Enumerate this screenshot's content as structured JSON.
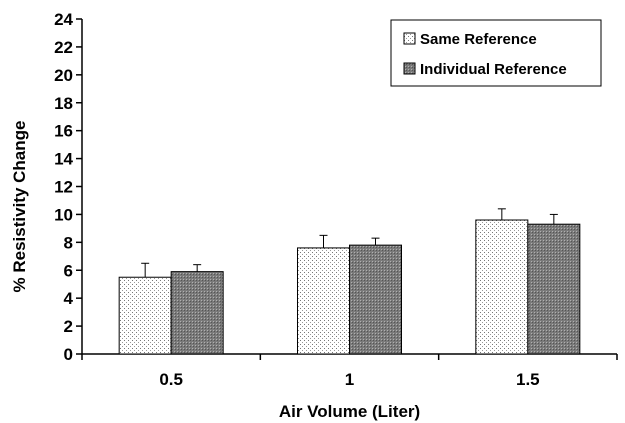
{
  "chart_data": {
    "type": "bar",
    "title": "",
    "xlabel": "Air Volume (Liter)",
    "ylabel": "% Resistivity Change",
    "ylim": [
      0,
      24
    ],
    "yticks": [
      0,
      2,
      4,
      6,
      8,
      10,
      12,
      14,
      16,
      18,
      20,
      22,
      24
    ],
    "categories": [
      "0.5",
      "1",
      "1.5"
    ],
    "grid": false,
    "legend_position": "top-right",
    "series": [
      {
        "name": "Same Reference",
        "values": [
          5.5,
          7.6,
          9.6
        ],
        "errors": [
          1.0,
          0.9,
          0.8
        ],
        "fill": "#ffffff",
        "pattern": "dotted"
      },
      {
        "name": "Individual Reference",
        "values": [
          5.9,
          7.8,
          9.3
        ],
        "errors": [
          0.5,
          0.5,
          0.7
        ],
        "fill": "#8a8a8a",
        "pattern": "dense-dotted"
      }
    ]
  }
}
